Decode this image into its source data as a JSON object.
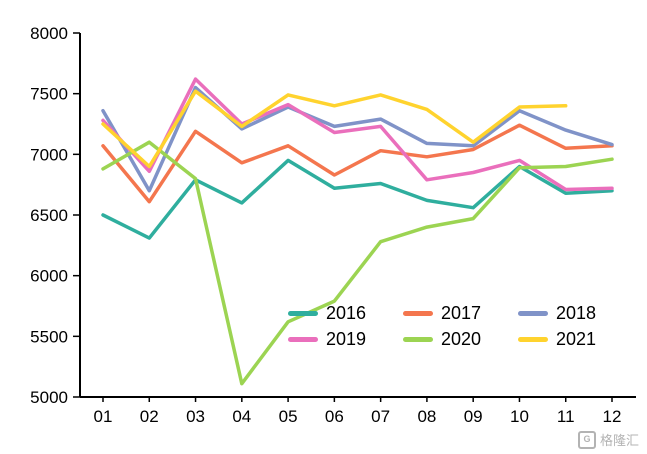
{
  "chart_data": {
    "type": "line",
    "title": "",
    "xlabel": "",
    "ylabel": "",
    "x": [
      "01",
      "02",
      "03",
      "04",
      "05",
      "06",
      "07",
      "08",
      "09",
      "10",
      "11",
      "12"
    ],
    "ylim": [
      5000,
      8000
    ],
    "yticks": [
      5000,
      5500,
      6000,
      6500,
      7000,
      7500,
      8000
    ],
    "grid": false,
    "legend_position": "inside-bottom-right",
    "axis_color": "#000000",
    "series": [
      {
        "name": "2016",
        "color": "#2FAE9E",
        "values": [
          6500,
          6310,
          6790,
          6600,
          6950,
          6720,
          6760,
          6620,
          6560,
          6900,
          6680,
          6700
        ]
      },
      {
        "name": "2017",
        "color": "#F4764E",
        "values": [
          7070,
          6610,
          7190,
          6930,
          7070,
          6830,
          7030,
          6980,
          7040,
          7240,
          7050,
          7070
        ]
      },
      {
        "name": "2018",
        "color": "#8093C8",
        "values": [
          7360,
          6700,
          7550,
          7210,
          7390,
          7230,
          7290,
          7090,
          7070,
          7360,
          7200,
          7080
        ]
      },
      {
        "name": "2019",
        "color": "#EA6FBC",
        "values": [
          7280,
          6860,
          7620,
          7250,
          7410,
          7180,
          7230,
          6790,
          6850,
          6950,
          6710,
          6720
        ]
      },
      {
        "name": "2020",
        "color": "#9CD452",
        "values": [
          6880,
          7100,
          6800,
          5110,
          5620,
          5790,
          6280,
          6400,
          6470,
          6890,
          6900,
          6960
        ]
      },
      {
        "name": "2021",
        "color": "#FFD32E",
        "values": [
          7250,
          6900,
          7520,
          7230,
          7490,
          7400,
          7490,
          7370,
          7100,
          7390,
          7400,
          null
        ]
      }
    ]
  },
  "watermark": {
    "logo_letter": "G",
    "text": "格隆汇"
  }
}
